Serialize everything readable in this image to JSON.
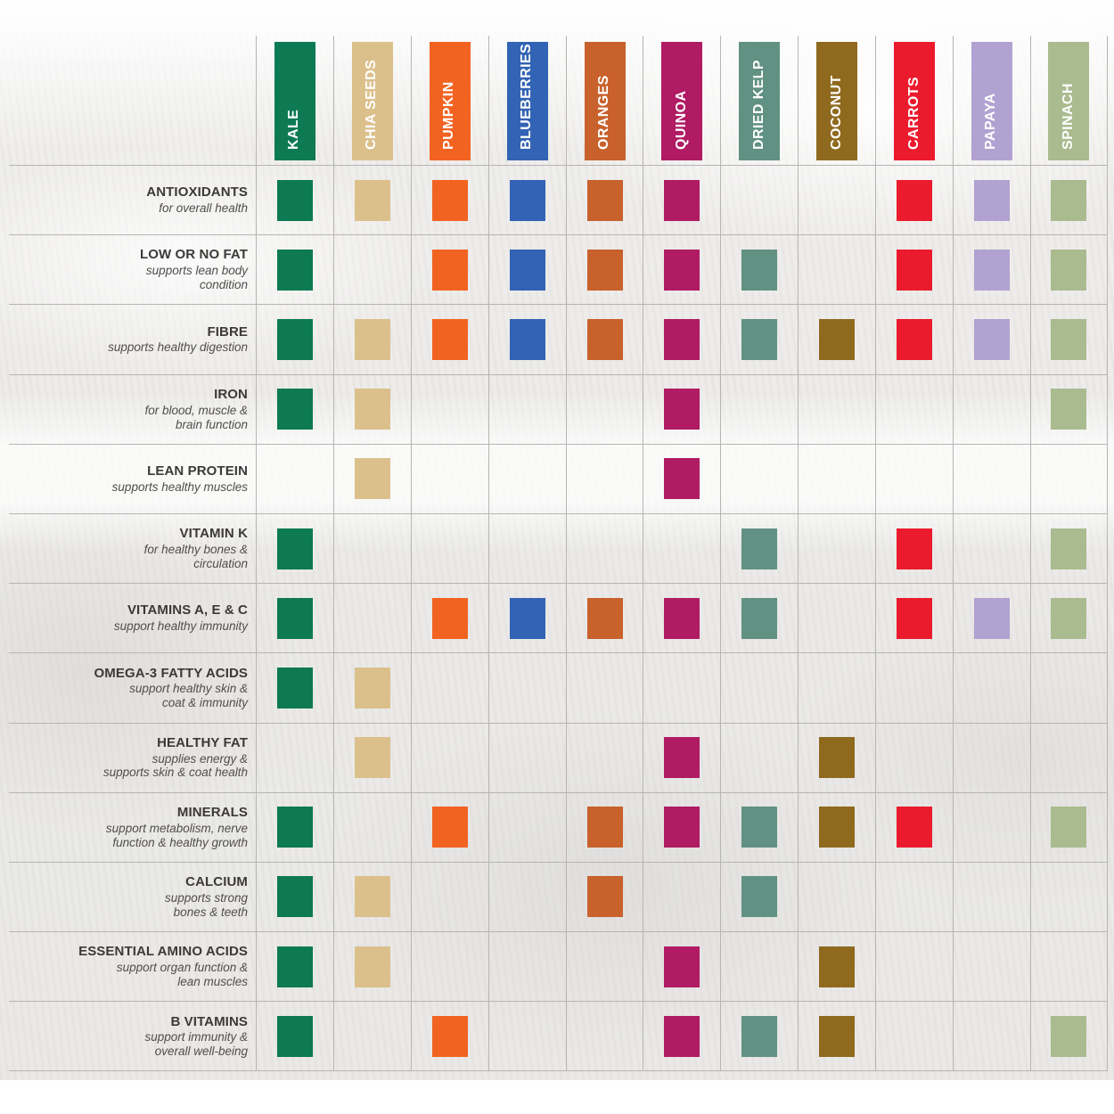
{
  "chart_data": {
    "type": "table",
    "legend_position": "top-column-headers",
    "grid": true,
    "columns": [
      {
        "label": "KALE",
        "color": "#0d7a54"
      },
      {
        "label": "CHIA SEEDS",
        "color": "#dcc08c"
      },
      {
        "label": "PUMPKIN",
        "color": "#f26322"
      },
      {
        "label": "BLUEBERRIES",
        "color": "#3263b4"
      },
      {
        "label": "ORANGES",
        "color": "#c8612b"
      },
      {
        "label": "QUINOA",
        "color": "#b01b64"
      },
      {
        "label": "DRIED KELP",
        "color": "#619183"
      },
      {
        "label": "COCONUT",
        "color": "#8f6a1e"
      },
      {
        "label": "CARROTS",
        "color": "#eb1b2d"
      },
      {
        "label": "PAPAYA",
        "color": "#b1a2d2"
      },
      {
        "label": "SPINACH",
        "color": "#a9bb8f"
      }
    ],
    "rows": [
      {
        "title": "ANTIOXIDANTS",
        "subtitle": "for overall health",
        "cells": [
          1,
          1,
          1,
          1,
          1,
          1,
          0,
          0,
          1,
          1,
          1
        ]
      },
      {
        "title": "LOW OR NO FAT",
        "subtitle": "supports lean body\ncondition",
        "cells": [
          1,
          0,
          1,
          1,
          1,
          1,
          1,
          0,
          1,
          1,
          1
        ]
      },
      {
        "title": "FIBRE",
        "subtitle": "supports healthy digestion",
        "cells": [
          1,
          1,
          1,
          1,
          1,
          1,
          1,
          1,
          1,
          1,
          1
        ]
      },
      {
        "title": "IRON",
        "subtitle": "for blood, muscle &\nbrain function",
        "cells": [
          1,
          1,
          0,
          0,
          0,
          1,
          0,
          0,
          0,
          0,
          1
        ]
      },
      {
        "title": "LEAN PROTEIN",
        "subtitle": "supports healthy muscles",
        "cells": [
          0,
          1,
          0,
          0,
          0,
          1,
          0,
          0,
          0,
          0,
          0
        ]
      },
      {
        "title": "VITAMIN K",
        "subtitle": "for healthy bones &\ncirculation",
        "cells": [
          1,
          0,
          0,
          0,
          0,
          0,
          1,
          0,
          1,
          0,
          1
        ]
      },
      {
        "title": "VITAMINS A, E & C",
        "subtitle": "support healthy immunity",
        "cells": [
          1,
          0,
          1,
          1,
          1,
          1,
          1,
          0,
          1,
          1,
          1
        ]
      },
      {
        "title": "OMEGA-3 FATTY ACIDS",
        "subtitle": "support healthy skin &\ncoat & immunity",
        "cells": [
          1,
          1,
          0,
          0,
          0,
          0,
          0,
          0,
          0,
          0,
          0
        ]
      },
      {
        "title": "HEALTHY FAT",
        "subtitle": "supplies energy &\nsupports skin & coat health",
        "cells": [
          0,
          1,
          0,
          0,
          0,
          1,
          0,
          1,
          0,
          0,
          0
        ]
      },
      {
        "title": "MINERALS",
        "subtitle": "support metabolism, nerve\nfunction & healthy growth",
        "cells": [
          1,
          0,
          1,
          0,
          1,
          1,
          1,
          1,
          1,
          0,
          1
        ]
      },
      {
        "title": "CALCIUM",
        "subtitle": "supports strong\nbones & teeth",
        "cells": [
          1,
          1,
          0,
          0,
          1,
          0,
          1,
          0,
          0,
          0,
          0
        ]
      },
      {
        "title": "ESSENTIAL AMINO ACIDS",
        "subtitle": "support organ function &\nlean muscles",
        "cells": [
          1,
          1,
          0,
          0,
          0,
          1,
          0,
          1,
          0,
          0,
          0
        ]
      },
      {
        "title": "B VITAMINS",
        "subtitle": "support immunity &\noverall well-being",
        "cells": [
          1,
          0,
          1,
          0,
          0,
          1,
          1,
          1,
          0,
          0,
          1
        ]
      }
    ]
  },
  "style": {
    "grid_line_color": "#b7b5b3",
    "row_title_color": "#3c3a38",
    "row_subtitle_color": "#504e4c",
    "header_text_color": "#ffffff"
  }
}
